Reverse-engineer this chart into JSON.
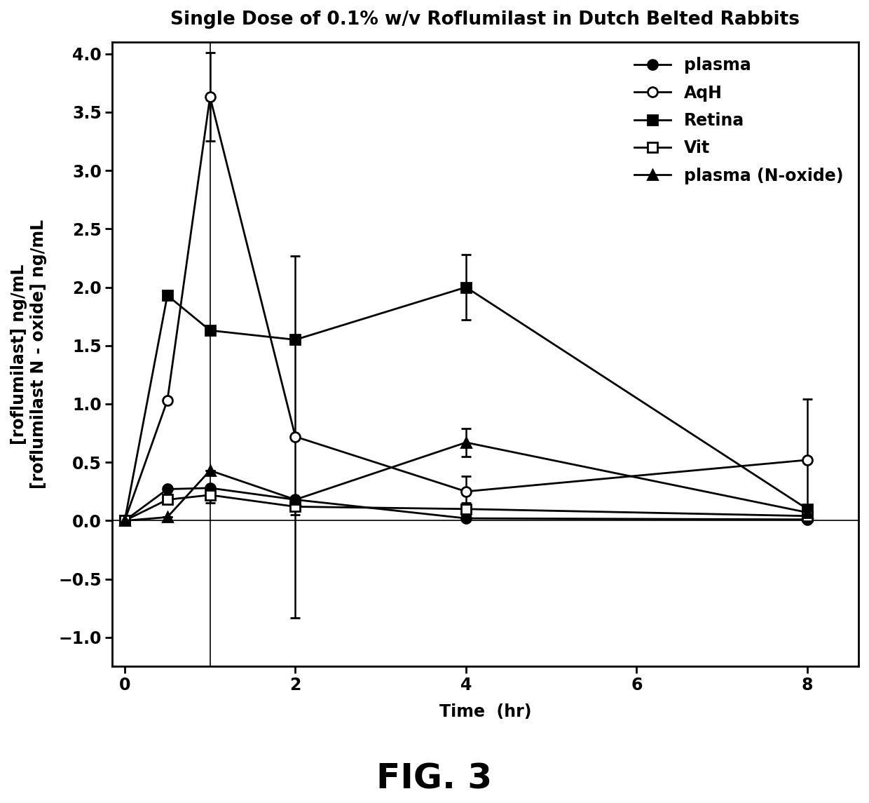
{
  "title": "Single Dose of 0.1% w/v Roflumilast in Dutch Belted Rabbits",
  "xlabel": "Time  (hr)",
  "ylabel_line1": "[roflumilast] ng/mL",
  "ylabel_line2": "[roflumilast N - oxide] ng/mL",
  "fig_label": "FIG. 3",
  "xlim": [
    -0.15,
    8.6
  ],
  "ylim": [
    -1.25,
    4.1
  ],
  "xticks": [
    0,
    2,
    4,
    6,
    8
  ],
  "yticks": [
    -1,
    -0.5,
    0,
    0.5,
    1,
    1.5,
    2,
    2.5,
    3,
    3.5,
    4
  ],
  "series": {
    "plasma": {
      "x": [
        0,
        0.5,
        1,
        2,
        4,
        8
      ],
      "y": [
        0,
        0.27,
        0.28,
        0.18,
        0.02,
        0.01
      ],
      "yerr": [
        0,
        0.0,
        0.0,
        0.0,
        0.0,
        0.0
      ],
      "marker": "o",
      "fillstyle": "full",
      "linewidth": 2.0,
      "markersize": 10
    },
    "AqH": {
      "x": [
        0,
        0.5,
        1,
        2,
        4,
        8
      ],
      "y": [
        0,
        1.03,
        3.63,
        0.72,
        0.25,
        0.52
      ],
      "yerr": [
        0,
        0.0,
        0.38,
        1.55,
        0.13,
        0.52
      ],
      "marker": "o",
      "fillstyle": "none",
      "linewidth": 2.0,
      "markersize": 10
    },
    "Retina": {
      "x": [
        0,
        0.5,
        1,
        2,
        4,
        8
      ],
      "y": [
        0,
        1.93,
        1.63,
        1.55,
        2.0,
        0.1
      ],
      "yerr": [
        0,
        0.0,
        0.0,
        0.0,
        0.28,
        0.0
      ],
      "marker": "s",
      "fillstyle": "full",
      "linewidth": 2.0,
      "markersize": 10
    },
    "Vit": {
      "x": [
        0,
        0.5,
        1,
        2,
        4,
        8
      ],
      "y": [
        0,
        0.18,
        0.22,
        0.12,
        0.1,
        0.04
      ],
      "yerr": [
        0,
        0.0,
        0.07,
        0.07,
        0.05,
        0.0
      ],
      "marker": "s",
      "fillstyle": "none",
      "linewidth": 2.0,
      "markersize": 10
    },
    "plasma_Noxide": {
      "x": [
        0,
        0.5,
        1,
        2,
        4,
        8
      ],
      "y": [
        0,
        0.03,
        0.43,
        0.18,
        0.67,
        0.07
      ],
      "yerr": [
        0,
        0.0,
        0.0,
        0.0,
        0.12,
        0.0
      ],
      "marker": "^",
      "fillstyle": "full",
      "linewidth": 2.0,
      "markersize": 10
    }
  },
  "legend_labels": [
    "plasma",
    "AqH",
    "Retina",
    "Vit",
    "plasma (N-oxide)"
  ],
  "vline_x": [
    1.0
  ],
  "background_color": "#ffffff",
  "title_fontsize": 19,
  "label_fontsize": 17,
  "tick_fontsize": 17,
  "legend_fontsize": 17,
  "figlabel_fontsize": 36
}
